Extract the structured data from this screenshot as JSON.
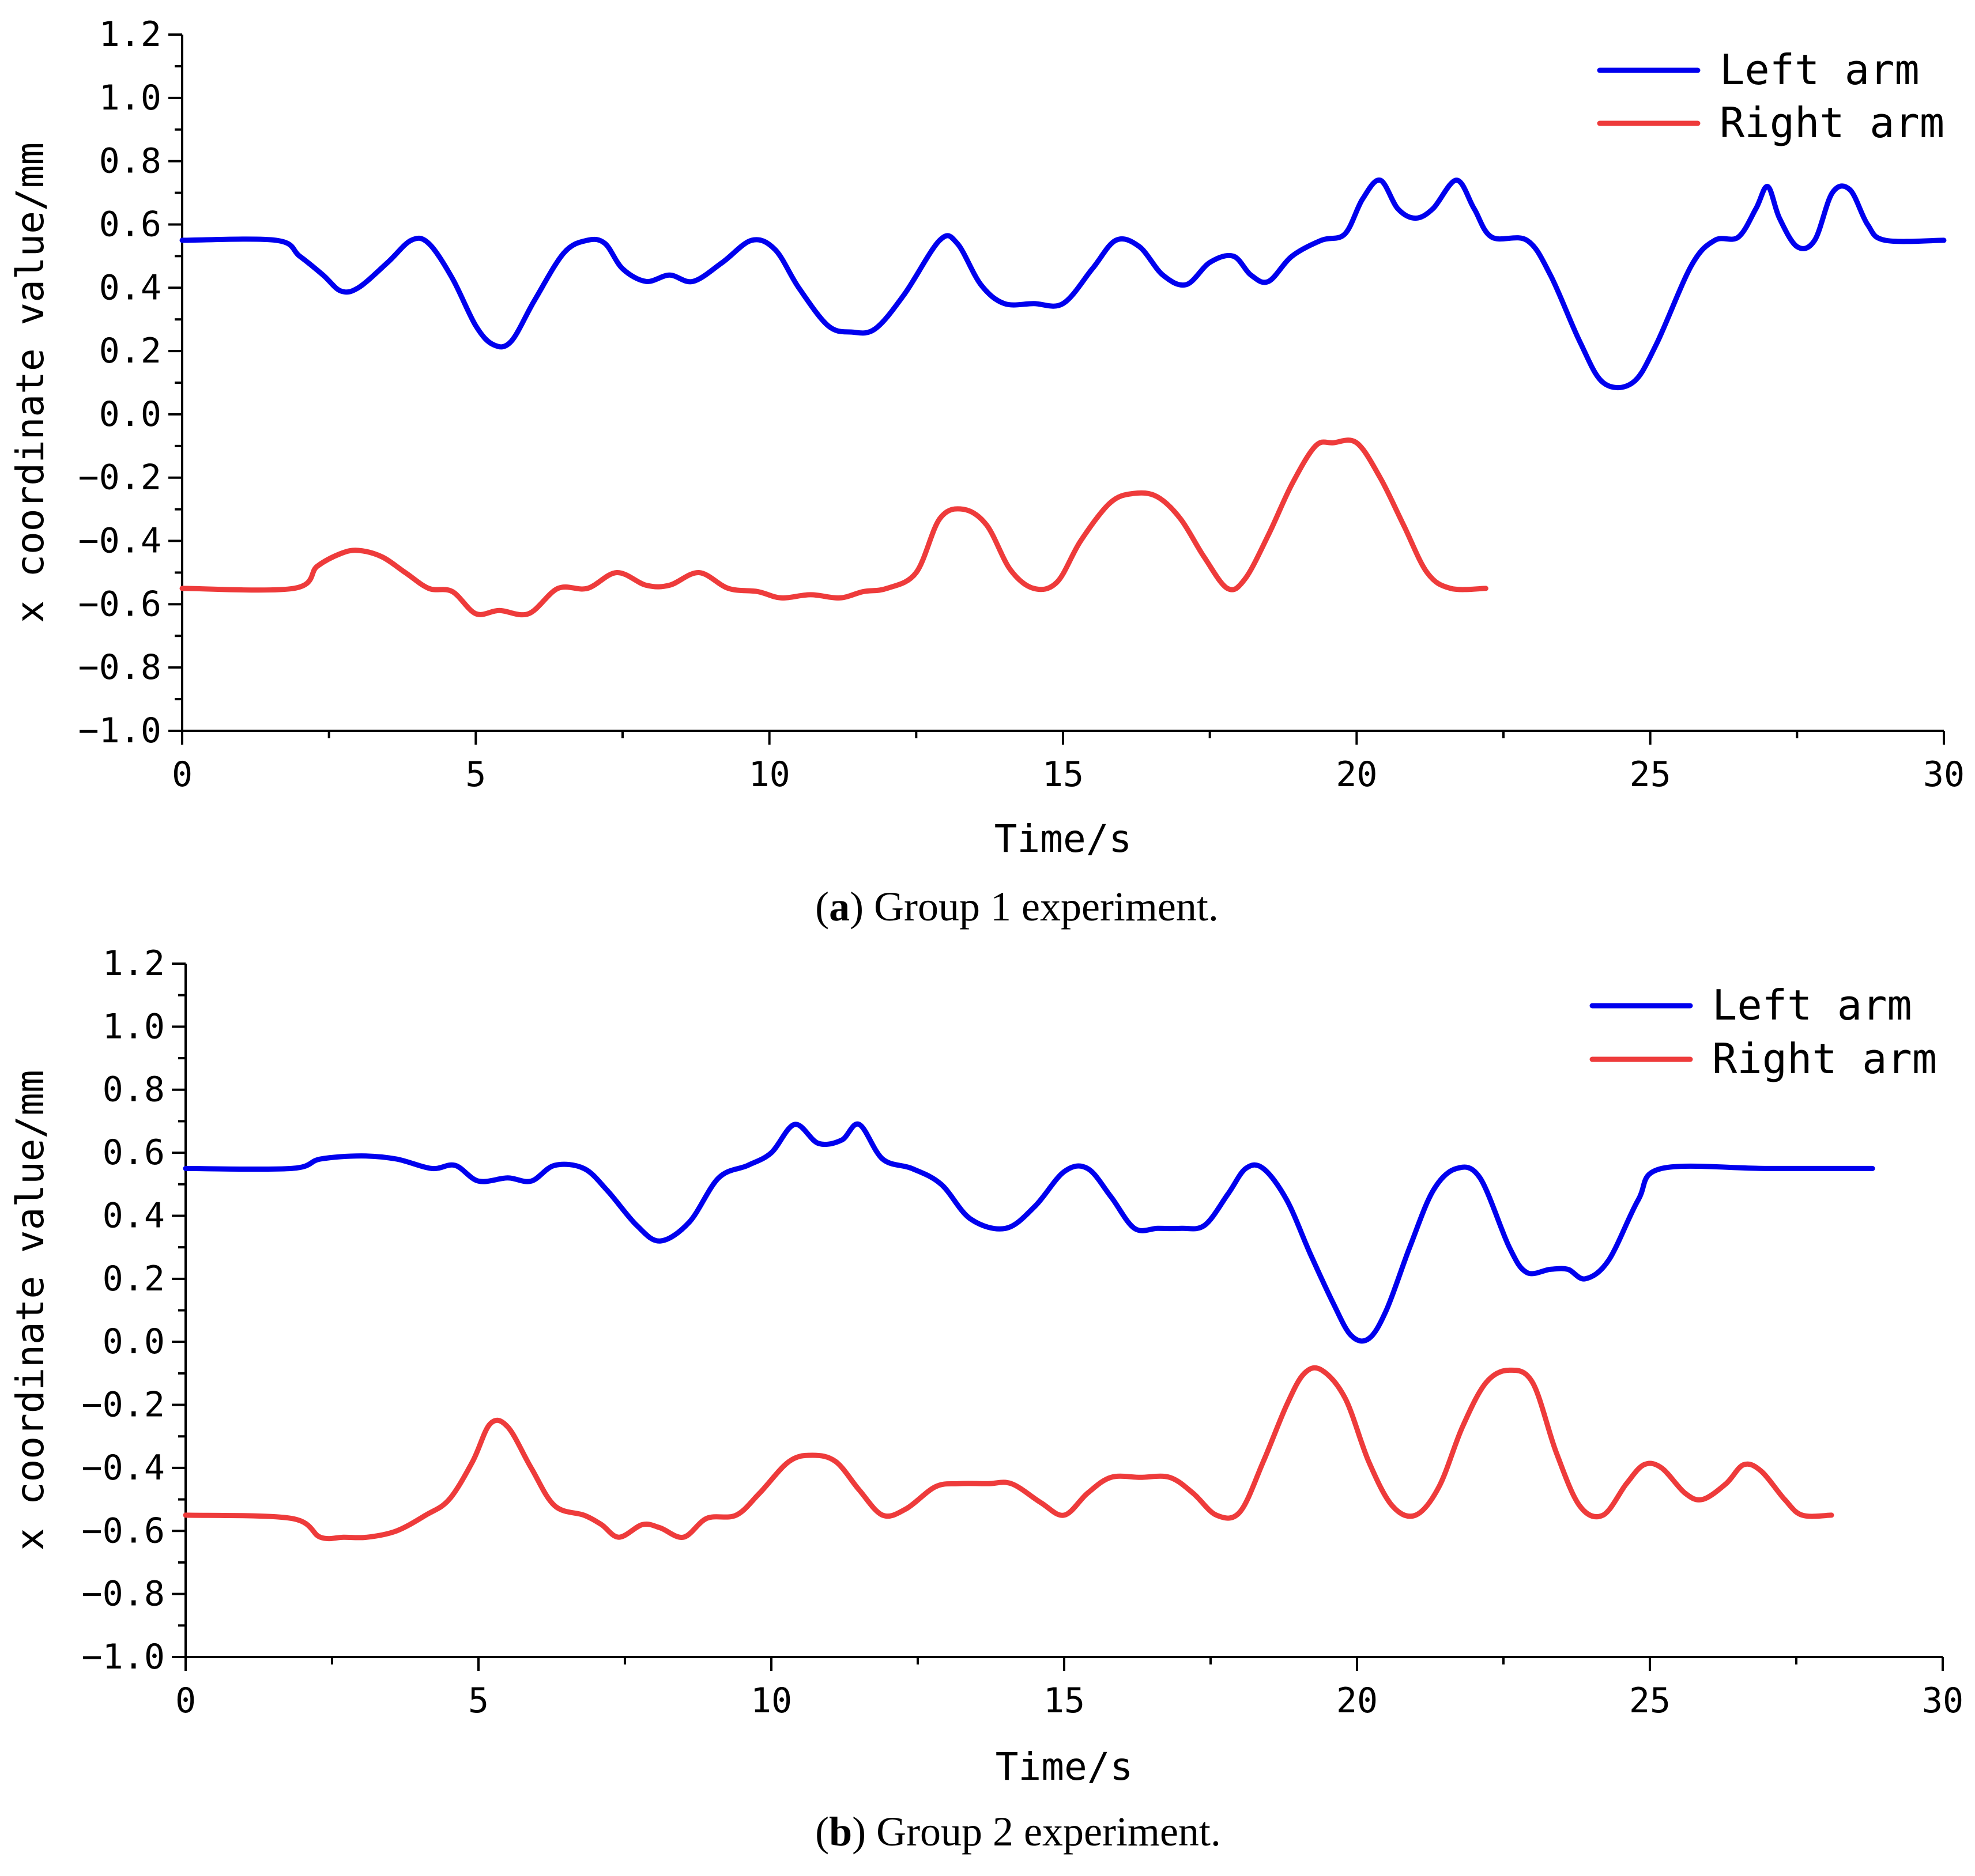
{
  "colors": {
    "left_arm": "#0000ee",
    "right_arm": "#ee3b3b",
    "axis": "#000000"
  },
  "chart_data": [
    {
      "type": "line",
      "id": "a",
      "caption_letter": "a",
      "caption_text": " Group 1 experiment.",
      "title": "",
      "xlabel": "Time/s",
      "ylabel": "x coordinate value/mm",
      "xlim": [
        0,
        30
      ],
      "ylim": [
        -1.0,
        1.2
      ],
      "xticks": [
        0,
        5,
        10,
        15,
        20,
        25,
        30
      ],
      "xtick_labels": [
        "0",
        "5",
        "10",
        "15",
        "20",
        "25",
        "30"
      ],
      "yticks": [
        -1.0,
        -0.8,
        -0.6,
        -0.4,
        -0.2,
        0.0,
        0.2,
        0.4,
        0.6,
        0.8,
        1.0,
        1.2
      ],
      "ytick_labels": [
        "−1.0",
        "−0.8",
        "−0.6",
        "−0.4",
        "−0.2",
        "0.0",
        "0.2",
        "0.4",
        "0.6",
        "0.8",
        "1.0",
        "1.2"
      ],
      "legend": [
        "Left arm",
        "Right arm"
      ],
      "legend_position": "top-right",
      "series": [
        {
          "name": "Left arm",
          "color": "#0000ee",
          "x": [
            0,
            1.6,
            2.0,
            2.4,
            2.7,
            3.0,
            3.5,
            3.9,
            4.2,
            4.6,
            5.0,
            5.3,
            5.6,
            6.0,
            6.5,
            6.9,
            7.2,
            7.5,
            7.9,
            8.3,
            8.7,
            9.2,
            9.7,
            10.1,
            10.5,
            11.0,
            11.4,
            11.8,
            12.3,
            12.9,
            13.2,
            13.6,
            14.0,
            14.5,
            15.0,
            15.5,
            15.9,
            16.3,
            16.7,
            17.1,
            17.5,
            17.9,
            18.2,
            18.5,
            18.9,
            19.4,
            19.8,
            20.1,
            20.4,
            20.7,
            21.0,
            21.3,
            21.7,
            22.0,
            22.3,
            22.9,
            23.3,
            23.8,
            24.2,
            24.7,
            25.1,
            25.7,
            26.1,
            26.5,
            26.8,
            27.0,
            27.2,
            27.5,
            27.8,
            28.1,
            28.4,
            28.7,
            29.0,
            30.0
          ],
          "values": [
            0.55,
            0.55,
            0.5,
            0.44,
            0.39,
            0.4,
            0.48,
            0.55,
            0.54,
            0.43,
            0.28,
            0.22,
            0.23,
            0.36,
            0.51,
            0.55,
            0.54,
            0.46,
            0.42,
            0.44,
            0.42,
            0.48,
            0.55,
            0.52,
            0.4,
            0.28,
            0.26,
            0.27,
            0.38,
            0.55,
            0.54,
            0.41,
            0.35,
            0.35,
            0.35,
            0.46,
            0.55,
            0.53,
            0.44,
            0.41,
            0.48,
            0.5,
            0.44,
            0.42,
            0.5,
            0.55,
            0.57,
            0.68,
            0.74,
            0.65,
            0.62,
            0.65,
            0.74,
            0.65,
            0.56,
            0.55,
            0.44,
            0.23,
            0.1,
            0.1,
            0.22,
            0.47,
            0.55,
            0.56,
            0.65,
            0.72,
            0.62,
            0.53,
            0.55,
            0.7,
            0.71,
            0.6,
            0.55,
            0.55
          ]
        },
        {
          "name": "Right arm",
          "color": "#ee3b3b",
          "x": [
            0,
            1.9,
            2.3,
            2.7,
            3.0,
            3.4,
            3.8,
            4.2,
            4.6,
            5.0,
            5.4,
            5.9,
            6.4,
            6.9,
            7.4,
            7.9,
            8.3,
            8.8,
            9.3,
            9.8,
            10.2,
            10.7,
            11.2,
            11.6,
            12.0,
            12.5,
            12.9,
            13.3,
            13.7,
            14.1,
            14.5,
            14.9,
            15.3,
            15.8,
            16.2,
            16.6,
            17.0,
            17.4,
            17.8,
            18.1,
            18.5,
            18.9,
            19.3,
            19.6,
            20.0,
            20.4,
            20.8,
            21.2,
            21.6,
            22.2
          ],
          "values": [
            -0.55,
            -0.55,
            -0.48,
            -0.44,
            -0.43,
            -0.45,
            -0.5,
            -0.55,
            -0.56,
            -0.63,
            -0.62,
            -0.63,
            -0.55,
            -0.55,
            -0.5,
            -0.54,
            -0.54,
            -0.5,
            -0.55,
            -0.56,
            -0.58,
            -0.57,
            -0.58,
            -0.56,
            -0.55,
            -0.5,
            -0.33,
            -0.3,
            -0.35,
            -0.49,
            -0.55,
            -0.53,
            -0.4,
            -0.28,
            -0.25,
            -0.26,
            -0.33,
            -0.45,
            -0.55,
            -0.52,
            -0.38,
            -0.22,
            -0.1,
            -0.09,
            -0.09,
            -0.2,
            -0.35,
            -0.5,
            -0.55,
            -0.55
          ]
        }
      ]
    },
    {
      "type": "line",
      "id": "b",
      "caption_letter": "b",
      "caption_text": " Group 2 experiment.",
      "title": "",
      "xlabel": "Time/s",
      "ylabel": "x coordinate value/mm",
      "xlim": [
        0,
        30
      ],
      "ylim": [
        -1.0,
        1.2
      ],
      "xticks": [
        0,
        5,
        10,
        15,
        20,
        25,
        30
      ],
      "xtick_labels": [
        "0",
        "5",
        "10",
        "15",
        "20",
        "25",
        "30"
      ],
      "yticks": [
        -1.0,
        -0.8,
        -0.6,
        -0.4,
        -0.2,
        0.0,
        0.2,
        0.4,
        0.6,
        0.8,
        1.0,
        1.2
      ],
      "ytick_labels": [
        "−1.0",
        "−0.8",
        "−0.6",
        "−0.4",
        "−0.2",
        "0.0",
        "0.2",
        "0.4",
        "0.6",
        "0.8",
        "1.0",
        "1.2"
      ],
      "legend": [
        "Left arm",
        "Right arm"
      ],
      "legend_position": "top-right",
      "series": [
        {
          "name": "Left arm",
          "color": "#0000ee",
          "x": [
            0,
            1.8,
            2.3,
            3.0,
            3.6,
            4.2,
            4.6,
            5.0,
            5.5,
            5.9,
            6.3,
            6.8,
            7.2,
            7.7,
            8.1,
            8.6,
            9.1,
            9.6,
            10.0,
            10.4,
            10.8,
            11.2,
            11.5,
            11.9,
            12.4,
            12.9,
            13.4,
            14.0,
            14.5,
            15.0,
            15.4,
            15.8,
            16.2,
            16.6,
            17.0,
            17.4,
            17.8,
            18.1,
            18.4,
            18.8,
            19.2,
            19.6,
            19.9,
            20.2,
            20.5,
            20.9,
            21.3,
            21.7,
            22.1,
            22.6,
            22.9,
            23.3,
            23.6,
            23.9,
            24.3,
            24.8,
            25.2,
            27.0,
            28.8
          ],
          "values": [
            0.55,
            0.55,
            0.58,
            0.59,
            0.58,
            0.55,
            0.56,
            0.51,
            0.52,
            0.51,
            0.56,
            0.55,
            0.48,
            0.37,
            0.32,
            0.38,
            0.52,
            0.56,
            0.6,
            0.69,
            0.63,
            0.64,
            0.69,
            0.58,
            0.55,
            0.5,
            0.39,
            0.36,
            0.43,
            0.54,
            0.55,
            0.46,
            0.36,
            0.36,
            0.36,
            0.37,
            0.47,
            0.55,
            0.55,
            0.45,
            0.28,
            0.12,
            0.02,
            0.01,
            0.1,
            0.3,
            0.48,
            0.55,
            0.52,
            0.3,
            0.22,
            0.23,
            0.23,
            0.2,
            0.26,
            0.45,
            0.55,
            0.55,
            0.55
          ]
        },
        {
          "name": "Right arm",
          "color": "#ee3b3b",
          "x": [
            0,
            1.8,
            2.3,
            2.7,
            3.1,
            3.6,
            4.1,
            4.5,
            4.9,
            5.2,
            5.5,
            5.9,
            6.3,
            6.8,
            7.1,
            7.4,
            7.8,
            8.1,
            8.5,
            8.9,
            9.4,
            9.8,
            10.3,
            10.7,
            11.1,
            11.5,
            11.9,
            12.3,
            12.8,
            13.2,
            13.7,
            14.1,
            14.6,
            15.0,
            15.4,
            15.8,
            16.3,
            16.8,
            17.2,
            17.6,
            18.0,
            18.4,
            18.8,
            19.1,
            19.4,
            19.8,
            20.2,
            20.6,
            21.0,
            21.4,
            21.8,
            22.2,
            22.6,
            23.0,
            23.4,
            23.8,
            24.2,
            24.6,
            24.9,
            25.2,
            25.6,
            25.9,
            26.3,
            26.6,
            26.9,
            27.3,
            27.6,
            28.1
          ],
          "values": [
            -0.55,
            -0.56,
            -0.62,
            -0.62,
            -0.62,
            -0.6,
            -0.55,
            -0.5,
            -0.38,
            -0.26,
            -0.27,
            -0.4,
            -0.52,
            -0.55,
            -0.58,
            -0.62,
            -0.58,
            -0.59,
            -0.62,
            -0.56,
            -0.55,
            -0.48,
            -0.38,
            -0.36,
            -0.38,
            -0.47,
            -0.55,
            -0.53,
            -0.46,
            -0.45,
            -0.45,
            -0.45,
            -0.51,
            -0.55,
            -0.48,
            -0.43,
            -0.43,
            -0.43,
            -0.48,
            -0.55,
            -0.54,
            -0.38,
            -0.2,
            -0.1,
            -0.09,
            -0.18,
            -0.38,
            -0.52,
            -0.55,
            -0.46,
            -0.27,
            -0.13,
            -0.09,
            -0.13,
            -0.35,
            -0.52,
            -0.55,
            -0.45,
            -0.39,
            -0.4,
            -0.48,
            -0.5,
            -0.45,
            -0.39,
            -0.41,
            -0.5,
            -0.55,
            -0.55
          ]
        }
      ]
    }
  ]
}
